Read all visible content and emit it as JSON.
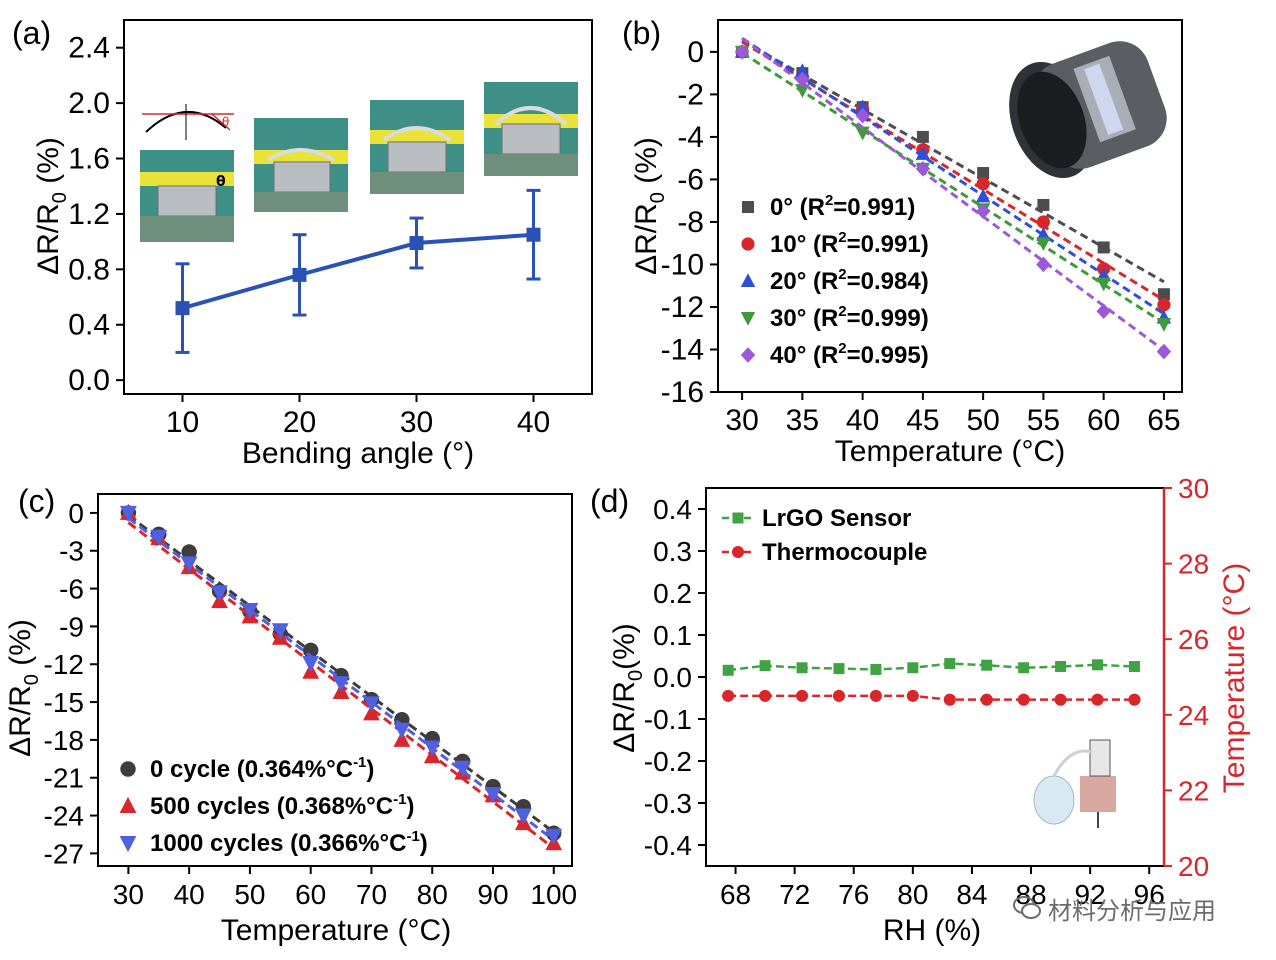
{
  "panels": {
    "a": {
      "label": "(a)",
      "ylabel_main": "ΔR/R",
      "ylabel_sub": "0",
      "ylabel_unit": " (%)"
    },
    "b": {
      "label": "(b)",
      "ylabel_main": "ΔR/R",
      "ylabel_sub": "0",
      "ylabel_unit": " (%)"
    },
    "c": {
      "label": "(c)",
      "ylabel_main": "ΔR/R",
      "ylabel_sub": "0",
      "ylabel_unit": " (%)"
    },
    "d": {
      "label": "(d)",
      "ylabel_main": "ΔR/R",
      "ylabel_sub": "0",
      "ylabel_unit": "(%)"
    }
  },
  "watermark": {
    "text": "材料分析与应用"
  },
  "colors": {
    "a_line": "#2a52b4",
    "b_series": [
      "#4d4d4d",
      "#d9262b",
      "#2f4fd8",
      "#3f9a3c",
      "#9b59d9"
    ],
    "c_series": [
      "#3d3d3d",
      "#d9262b",
      "#4f60e0"
    ],
    "d_sensor": "#3fa344",
    "d_thermo": "#d9262b",
    "d_right_axis": "#d9262b"
  },
  "chart_data": [
    {
      "panel": "a",
      "type": "line",
      "xlabel": "Bending angle (°)",
      "ylabel": "ΔR/R0 (%)",
      "xlim": [
        5,
        45
      ],
      "ylim": [
        -0.1,
        2.6
      ],
      "xticks": [
        10,
        20,
        30,
        40
      ],
      "yticks": [
        0.0,
        0.4,
        0.8,
        1.2,
        1.6,
        2.0,
        2.4
      ],
      "ytick_labels": [
        "0.0",
        "0.4",
        "0.8",
        "1.2",
        "1.6",
        "2.0",
        "2.4"
      ],
      "x": [
        10,
        20,
        30,
        40
      ],
      "values": [
        0.52,
        0.76,
        0.99,
        1.05
      ],
      "error": [
        0.32,
        0.29,
        0.18,
        0.32
      ],
      "insets": [
        "photo-10deg",
        "photo-20deg",
        "photo-30deg",
        "photo-40deg"
      ],
      "inset_theta": "θ"
    },
    {
      "panel": "b",
      "type": "scatter",
      "xlabel": "Temperature (°C)",
      "ylabel": "ΔR/R0 (%)",
      "xlim": [
        28,
        66.5
      ],
      "ylim": [
        -16,
        1.5
      ],
      "xticks": [
        30,
        35,
        40,
        45,
        50,
        55,
        60,
        65
      ],
      "yticks": [
        0,
        -2,
        -4,
        -6,
        -8,
        -10,
        -12,
        -14,
        -16
      ],
      "x": [
        30,
        35,
        40,
        45,
        50,
        55,
        60,
        65
      ],
      "series": [
        {
          "name": "0°",
          "r2_label": "R",
          "r2_sup": "2",
          "r2_value": "=0.991",
          "marker": "square",
          "values": [
            0,
            -1.0,
            -2.6,
            -4.0,
            -5.7,
            -7.2,
            -9.2,
            -11.4
          ]
        },
        {
          "name": "10°",
          "r2_label": "R",
          "r2_sup": "2",
          "r2_value": "=0.991",
          "marker": "circle",
          "values": [
            0,
            -1.2,
            -2.7,
            -4.6,
            -6.2,
            -8.0,
            -10.2,
            -11.9
          ]
        },
        {
          "name": "20°",
          "r2_label": "R",
          "r2_sup": "2",
          "r2_value": "=0.984",
          "marker": "triangle-up",
          "values": [
            0,
            -0.9,
            -2.6,
            -4.8,
            -6.8,
            -8.6,
            -10.5,
            -12.5
          ]
        },
        {
          "name": "30°",
          "r2_label": "R",
          "r2_sup": "2",
          "r2_value": "=0.999",
          "marker": "triangle-down",
          "values": [
            0,
            -1.8,
            -3.8,
            -5.5,
            -7.4,
            -9.0,
            -10.9,
            -12.8
          ]
        },
        {
          "name": "40°",
          "r2_label": "R",
          "r2_sup": "2",
          "r2_value": "=0.995",
          "marker": "diamond",
          "values": [
            0,
            -1.3,
            -3.0,
            -5.5,
            -7.5,
            -10.0,
            -12.2,
            -14.1
          ]
        }
      ],
      "inset": "sensor-on-cylinder-photo"
    },
    {
      "panel": "c",
      "type": "scatter",
      "xlabel": "Temperature (°C)",
      "ylabel": "ΔR/R0 (%)",
      "xlim": [
        25,
        103
      ],
      "ylim": [
        -28,
        1.5
      ],
      "xticks": [
        30,
        40,
        50,
        60,
        70,
        80,
        90,
        100
      ],
      "yticks": [
        0,
        -3,
        -6,
        -9,
        -12,
        -15,
        -18,
        -21,
        -24,
        -27
      ],
      "x": [
        30,
        35,
        40,
        45,
        50,
        55,
        60,
        65,
        70,
        75,
        80,
        85,
        90,
        95,
        100
      ],
      "series": [
        {
          "name": "0 cycle",
          "slope_label": "(0.364%°C",
          "slope_sup": "-1",
          "slope_close": ")",
          "marker": "circle",
          "values": [
            0,
            -1.7,
            -3.1,
            -6.2,
            -7.8,
            -9.6,
            -10.9,
            -12.9,
            -14.8,
            -16.4,
            -17.9,
            -19.7,
            -21.7,
            -23.3,
            -25.4
          ]
        },
        {
          "name": "500 cycles",
          "slope_label": "(0.368%°C",
          "slope_sup": "-1",
          "slope_close": ")",
          "marker": "triangle-up",
          "values": [
            0,
            -2.0,
            -4.3,
            -7.0,
            -8.2,
            -9.9,
            -12.6,
            -14.2,
            -15.9,
            -18.0,
            -19.3,
            -20.6,
            -22.4,
            -24.6,
            -26.2
          ]
        },
        {
          "name": "1000 cycles",
          "slope_label": "(0.366%°C",
          "slope_sup": "-1",
          "slope_close": ")",
          "marker": "triangle-down",
          "values": [
            0,
            -1.9,
            -4.0,
            -6.3,
            -7.7,
            -9.3,
            -11.9,
            -13.5,
            -15.1,
            -17.2,
            -18.6,
            -20.2,
            -22.3,
            -24.0,
            -25.6
          ]
        }
      ]
    },
    {
      "panel": "d",
      "type": "line",
      "xlabel": "RH (%)",
      "ylabel": "ΔR/R0(%)",
      "ylabel_right": "Temperature (°C)",
      "xlim": [
        66,
        97
      ],
      "ylim": [
        -0.45,
        0.45
      ],
      "ylim_right": [
        20,
        30
      ],
      "xticks": [
        68,
        72,
        76,
        80,
        84,
        88,
        92,
        96
      ],
      "xtick_labels": [
        "68",
        "72",
        "76",
        "80",
        "84",
        "88",
        "92",
        "96"
      ],
      "yticks": [
        0.4,
        0.3,
        0.2,
        0.1,
        0.0,
        -0.1,
        -0.2,
        -0.3,
        -0.4
      ],
      "ytick_labels": [
        "0.4",
        "0.3",
        "0.2",
        "0.1",
        "0.0",
        "-0.1",
        "-0.2",
        "-0.3",
        "-0.4"
      ],
      "yticks_right": [
        20,
        22,
        24,
        26,
        28,
        30
      ],
      "x": [
        67.5,
        70,
        72.5,
        75,
        77.5,
        80,
        82.5,
        85,
        87.5,
        90,
        92.5,
        95
      ],
      "series": [
        {
          "name": "LrGO Sensor",
          "axis": "left",
          "marker": "square",
          "values": [
            0.016,
            0.027,
            0.022,
            0.02,
            0.018,
            0.022,
            0.032,
            0.028,
            0.022,
            0.025,
            0.029,
            0.025
          ]
        },
        {
          "name": "Thermocouple",
          "axis": "right",
          "marker": "circle",
          "values": [
            24.5,
            24.5,
            24.5,
            24.5,
            24.5,
            24.5,
            24.4,
            24.4,
            24.4,
            24.4,
            24.4,
            24.4
          ]
        }
      ],
      "inset": "humidifier-setup-photo"
    }
  ]
}
